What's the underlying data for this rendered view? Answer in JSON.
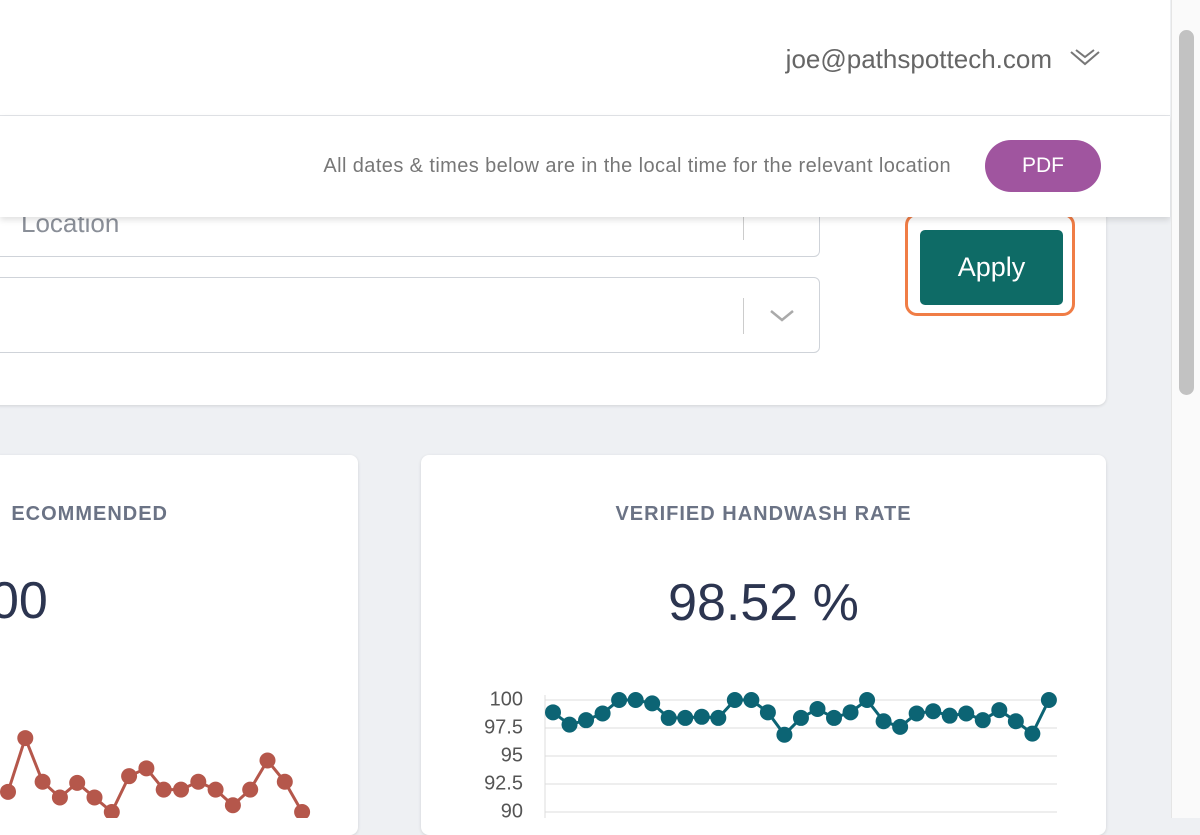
{
  "header": {
    "user_email": "joe@pathspottech.com"
  },
  "toolbar": {
    "note": "All dates & times below are in the local time for the relevant location",
    "pdf_button": "PDF"
  },
  "filters": {
    "location_placeholder": "Location",
    "apply_button": "Apply"
  },
  "cards": [
    {
      "title": "ECOMMENDED",
      "value": "00"
    },
    {
      "title": "VERIFIED HANDWASH RATE",
      "value": "98.52 %"
    }
  ],
  "chart_data": [
    {
      "type": "line",
      "color": "#b5574b",
      "ylim": [
        90,
        100
      ],
      "values": [
        91.8,
        96.6,
        92.7,
        91.3,
        92.6,
        91.3,
        90,
        93.2,
        93.9,
        92.0,
        92.0,
        92.7,
        92.0,
        90.6,
        92.0,
        94.6,
        92.7,
        90
      ]
    },
    {
      "type": "line",
      "color": "#0c6474",
      "ylim": [
        90,
        100
      ],
      "grid": true,
      "yticks": [
        90,
        92.5,
        95,
        97.5,
        100
      ],
      "values": [
        98.9,
        97.8,
        98.2,
        98.8,
        100,
        100,
        99.7,
        98.4,
        98.4,
        98.5,
        98.4,
        100,
        100,
        98.9,
        96.9,
        98.4,
        99.2,
        98.4,
        98.9,
        100,
        98.1,
        97.6,
        98.8,
        99.0,
        98.6,
        98.8,
        98.2,
        99.1,
        98.1,
        97.0,
        100
      ]
    }
  ]
}
